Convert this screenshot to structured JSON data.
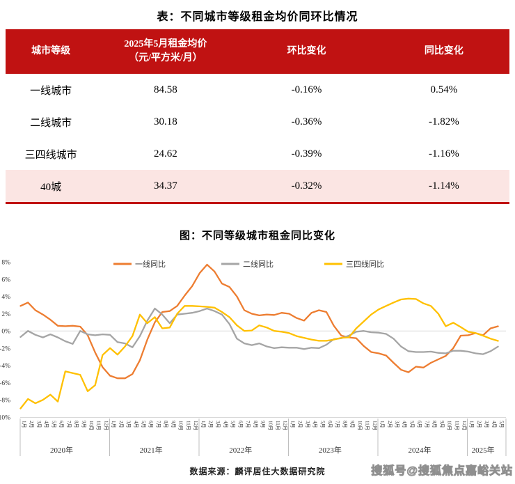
{
  "table": {
    "title": "表：不同城市等级租金均价同环比情况",
    "headers": [
      "城市等级",
      "2025年5月租金均价\n（元/平方米/月）",
      "环比变化",
      "同比变化"
    ],
    "rows": [
      [
        "一线城市",
        "84.58",
        "-0.16%",
        "0.54%"
      ],
      [
        "二线城市",
        "30.18",
        "-0.36%",
        "-1.82%"
      ],
      [
        "三四线城市",
        "24.62",
        "-0.39%",
        "-1.16%"
      ],
      [
        "40城",
        "34.37",
        "-0.32%",
        "-1.14%"
      ]
    ],
    "highlight_row_index": 3,
    "header_bg": "#C01212",
    "highlight_color": "#FBE5E3",
    "accent_color": "#C01212"
  },
  "chart_data": {
    "type": "line",
    "title": "图：不同等级城市租金同比变化",
    "legend_position": "top",
    "grid": "zero-line-only",
    "ylim": [
      -10,
      8
    ],
    "y_axis": {
      "tick_values": [
        8,
        6,
        4,
        2,
        0,
        -2,
        -4,
        -6,
        -8,
        -10
      ],
      "tick_labels": [
        "8%",
        "6%",
        "4%",
        "2%",
        "0%",
        "-2%",
        "-4%",
        "-6%",
        "-8%",
        "-10%"
      ]
    },
    "x_axis": {
      "month_labels": [
        "1月",
        "2月",
        "3月",
        "4月",
        "5月",
        "6月",
        "7月",
        "8月",
        "9月",
        "10月",
        "11月",
        "12月",
        "1月",
        "2月",
        "3月",
        "4月",
        "5月",
        "6月",
        "7月",
        "8月",
        "9月",
        "10月",
        "11月",
        "12月",
        "1月",
        "2月",
        "3月",
        "4月",
        "5月",
        "6月",
        "7月",
        "8月",
        "9月",
        "10月",
        "11月",
        "12月",
        "1月",
        "2月",
        "3月",
        "4月",
        "5月",
        "6月",
        "7月",
        "8月",
        "9月",
        "10月",
        "11月",
        "12月",
        "1月",
        "2月",
        "3月",
        "4月",
        "5月",
        "6月",
        "7月",
        "8月",
        "9月",
        "10月",
        "11月",
        "12月",
        "1月",
        "2月",
        "3月",
        "4月",
        "5月"
      ],
      "year_rows": [
        {
          "label": "2020年",
          "months": 12
        },
        {
          "label": "2021年",
          "months": 12
        },
        {
          "label": "2022年",
          "months": 12
        },
        {
          "label": "2023年",
          "months": 12
        },
        {
          "label": "2024年",
          "months": 12
        },
        {
          "label": "2025年",
          "months": 5
        }
      ]
    },
    "series": [
      {
        "name": "一线同比",
        "color": "#ED7D31",
        "values": [
          2.9,
          3.3,
          2.4,
          1.9,
          1.3,
          0.6,
          0.55,
          0.6,
          0.5,
          -0.5,
          -2.5,
          -4.2,
          -5.2,
          -5.5,
          -5.5,
          -5.0,
          -3.4,
          -1.0,
          1.0,
          2.2,
          2.3,
          2.9,
          4.1,
          5.2,
          6.7,
          7.7,
          6.9,
          5.5,
          5.1,
          4.0,
          2.4,
          2.0,
          1.8,
          1.9,
          1.85,
          2.1,
          2.0,
          1.5,
          1.2,
          2.1,
          2.4,
          2.2,
          0.6,
          -0.55,
          -0.75,
          -0.85,
          -1.75,
          -2.45,
          -2.6,
          -2.85,
          -3.7,
          -4.5,
          -4.8,
          -4.15,
          -4.25,
          -3.7,
          -3.3,
          -2.9,
          -2.0,
          -0.55,
          -0.5,
          -0.25,
          -0.5,
          0.3,
          0.54
        ]
      },
      {
        "name": "二线同比",
        "color": "#A5A5A5",
        "values": [
          -0.7,
          0.0,
          -0.45,
          -0.75,
          -0.4,
          -0.75,
          -1.2,
          -1.5,
          0.0,
          -0.4,
          -0.5,
          -0.4,
          -0.45,
          -1.3,
          -1.45,
          -1.9,
          -0.6,
          1.2,
          2.6,
          1.9,
          0.9,
          1.9,
          2.0,
          2.1,
          2.3,
          2.6,
          2.3,
          1.9,
          0.8,
          -0.9,
          -1.45,
          -1.65,
          -1.45,
          -1.8,
          -2.0,
          -1.9,
          -1.95,
          -1.95,
          -2.1,
          -1.95,
          -2.0,
          -1.6,
          -0.95,
          -0.85,
          -0.55,
          -0.1,
          0.0,
          -0.15,
          -0.2,
          -0.35,
          -0.9,
          -1.8,
          -2.35,
          -2.45,
          -2.45,
          -2.4,
          -2.55,
          -2.6,
          -2.3,
          -2.3,
          -2.4,
          -2.6,
          -2.7,
          -2.35,
          -1.82
        ]
      },
      {
        "name": "三四线同比",
        "color": "#FFC000",
        "values": [
          -9.0,
          -7.9,
          -8.4,
          -8.0,
          -7.4,
          -8.2,
          -4.7,
          -4.9,
          -5.1,
          -7.0,
          -6.3,
          -2.8,
          -2.0,
          -2.75,
          -1.8,
          -0.6,
          1.9,
          0.9,
          1.6,
          0.3,
          0.4,
          2.0,
          2.9,
          2.9,
          2.85,
          2.8,
          2.7,
          2.2,
          1.6,
          0.65,
          0.0,
          0.05,
          0.65,
          0.4,
          0.0,
          -0.1,
          -0.25,
          -0.6,
          -0.8,
          -1.0,
          -1.15,
          -1.15,
          -1.0,
          -0.8,
          -0.75,
          0.3,
          1.1,
          1.9,
          2.5,
          2.9,
          3.3,
          3.65,
          3.75,
          3.7,
          3.2,
          2.9,
          2.0,
          0.55,
          0.95,
          0.45,
          -0.1,
          -0.25,
          -0.55,
          -0.9,
          -1.16
        ]
      }
    ]
  },
  "footer": {
    "source": "数据来源：麟评居住大数据研究院",
    "watermark": "搜狐号@搜狐焦点嘉峪关站"
  }
}
